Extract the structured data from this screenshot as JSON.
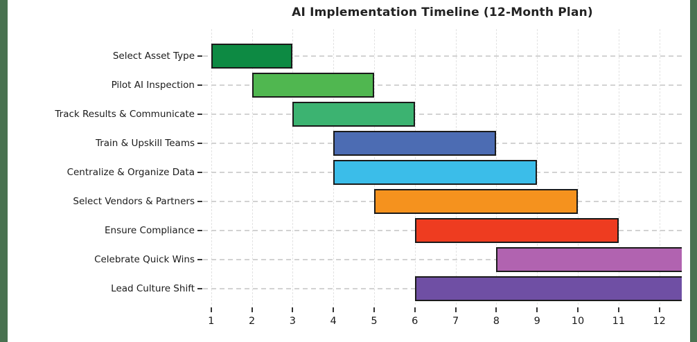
{
  "page": {
    "background_color": "#ffffff",
    "side_strip_color": "#497250"
  },
  "chart_data": {
    "type": "bar",
    "subtype": "gantt-horizontal",
    "title": "AI Implementation Timeline (12-Month Plan)",
    "xlabel": "",
    "ylabel": "",
    "xlim": [
      0.8,
      12.55
    ],
    "x_ticks": [
      1,
      2,
      3,
      4,
      5,
      6,
      7,
      8,
      9,
      10,
      11,
      12
    ],
    "grid": {
      "horizontal": "dashed-gray",
      "vertical": "faint-dashed",
      "horizontal_color": "#d2d2d2",
      "vertical_color": "#e2e2e2"
    },
    "bar_border_color": "#1a1a1a",
    "legend": "none",
    "tasks": [
      {
        "label": "Select Asset Type",
        "start": 1,
        "end": 3,
        "clipped": false,
        "color": "#0d8a43"
      },
      {
        "label": "Pilot AI Inspection",
        "start": 2,
        "end": 5,
        "clipped": false,
        "color": "#50b750"
      },
      {
        "label": "Track Results & Communicate",
        "start": 3,
        "end": 6,
        "clipped": false,
        "color": "#3cb371"
      },
      {
        "label": "Train & Upskill Teams",
        "start": 4,
        "end": 8,
        "clipped": false,
        "color": "#4c6cb3"
      },
      {
        "label": "Centralize & Organize Data",
        "start": 4,
        "end": 9,
        "clipped": false,
        "color": "#3bbde9"
      },
      {
        "label": "Select Vendors & Partners",
        "start": 5,
        "end": 10,
        "clipped": false,
        "color": "#f5921e"
      },
      {
        "label": "Ensure Compliance",
        "start": 6,
        "end": 11,
        "clipped": false,
        "color": "#ee3c20"
      },
      {
        "label": "Celebrate Quick Wins",
        "start": 8,
        "end": 12.55,
        "clipped": true,
        "color": "#b163b0"
      },
      {
        "label": "Lead Culture Shift",
        "start": 6,
        "end": 12.55,
        "clipped": true,
        "color": "#6f4fa4"
      }
    ]
  }
}
